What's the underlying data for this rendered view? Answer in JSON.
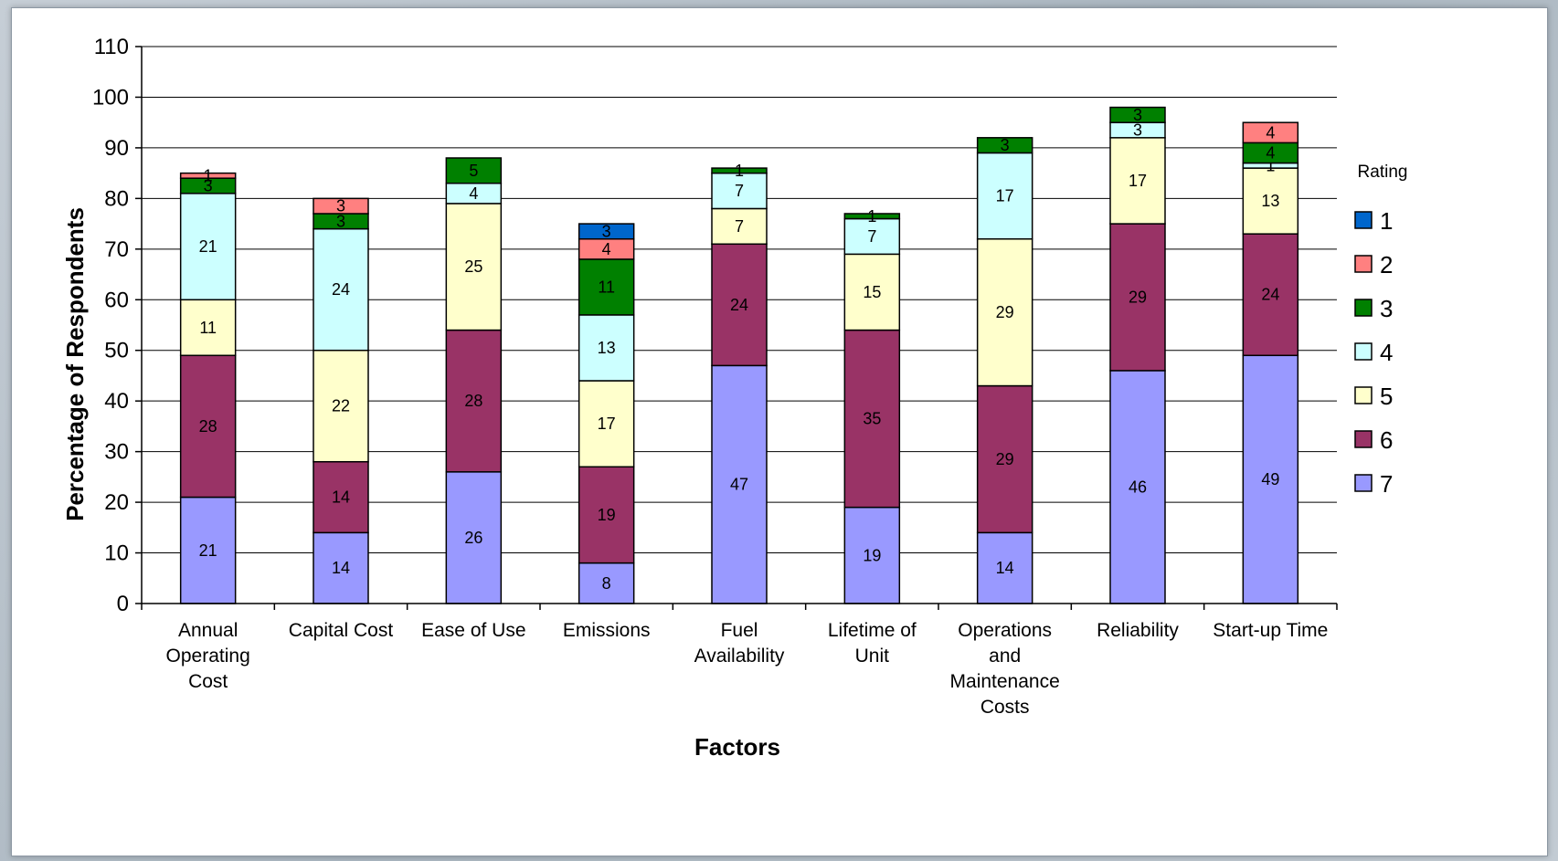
{
  "chart_data": {
    "type": "bar",
    "stacked": true,
    "categories": [
      [
        "Annual",
        "Operating",
        "Cost"
      ],
      [
        "Capital Cost"
      ],
      [
        "Ease of Use"
      ],
      [
        "Emissions"
      ],
      [
        "Fuel",
        "Availability"
      ],
      [
        "Lifetime of",
        "Unit"
      ],
      [
        "Operations",
        "and",
        "Maintenance",
        "Costs"
      ],
      [
        "Reliability"
      ],
      [
        "Start-up Time"
      ]
    ],
    "series": [
      {
        "name": "7",
        "color": "#9999ff",
        "values": [
          21,
          14,
          26,
          8,
          47,
          19,
          14,
          46,
          49
        ]
      },
      {
        "name": "6",
        "color": "#993366",
        "values": [
          28,
          14,
          28,
          19,
          24,
          35,
          29,
          29,
          24
        ]
      },
      {
        "name": "5",
        "color": "#ffffcc",
        "values": [
          11,
          22,
          25,
          17,
          7,
          15,
          29,
          17,
          13
        ]
      },
      {
        "name": "4",
        "color": "#ccffff",
        "values": [
          21,
          24,
          4,
          13,
          7,
          7,
          17,
          3,
          1
        ]
      },
      {
        "name": "3",
        "color": "#008000",
        "values": [
          3,
          3,
          5,
          11,
          1,
          1,
          3,
          3,
          4
        ]
      },
      {
        "name": "2",
        "color": "#ff8080",
        "values": [
          1,
          3,
          0,
          4,
          0,
          0,
          0,
          0,
          4
        ]
      },
      {
        "name": "1",
        "color": "#0066cc",
        "values": [
          0,
          0,
          0,
          3,
          0,
          0,
          0,
          0,
          0
        ]
      }
    ],
    "legend_order": [
      "1",
      "2",
      "3",
      "4",
      "5",
      "6",
      "7"
    ],
    "legend_title": "Rating",
    "legend_position": "right",
    "xlabel": "Factors",
    "ylabel": "Percentage of Respondents",
    "ylim": [
      0,
      110
    ],
    "yticks": [
      0,
      10,
      20,
      30,
      40,
      50,
      60,
      70,
      80,
      90,
      100,
      110
    ],
    "grid": true
  }
}
